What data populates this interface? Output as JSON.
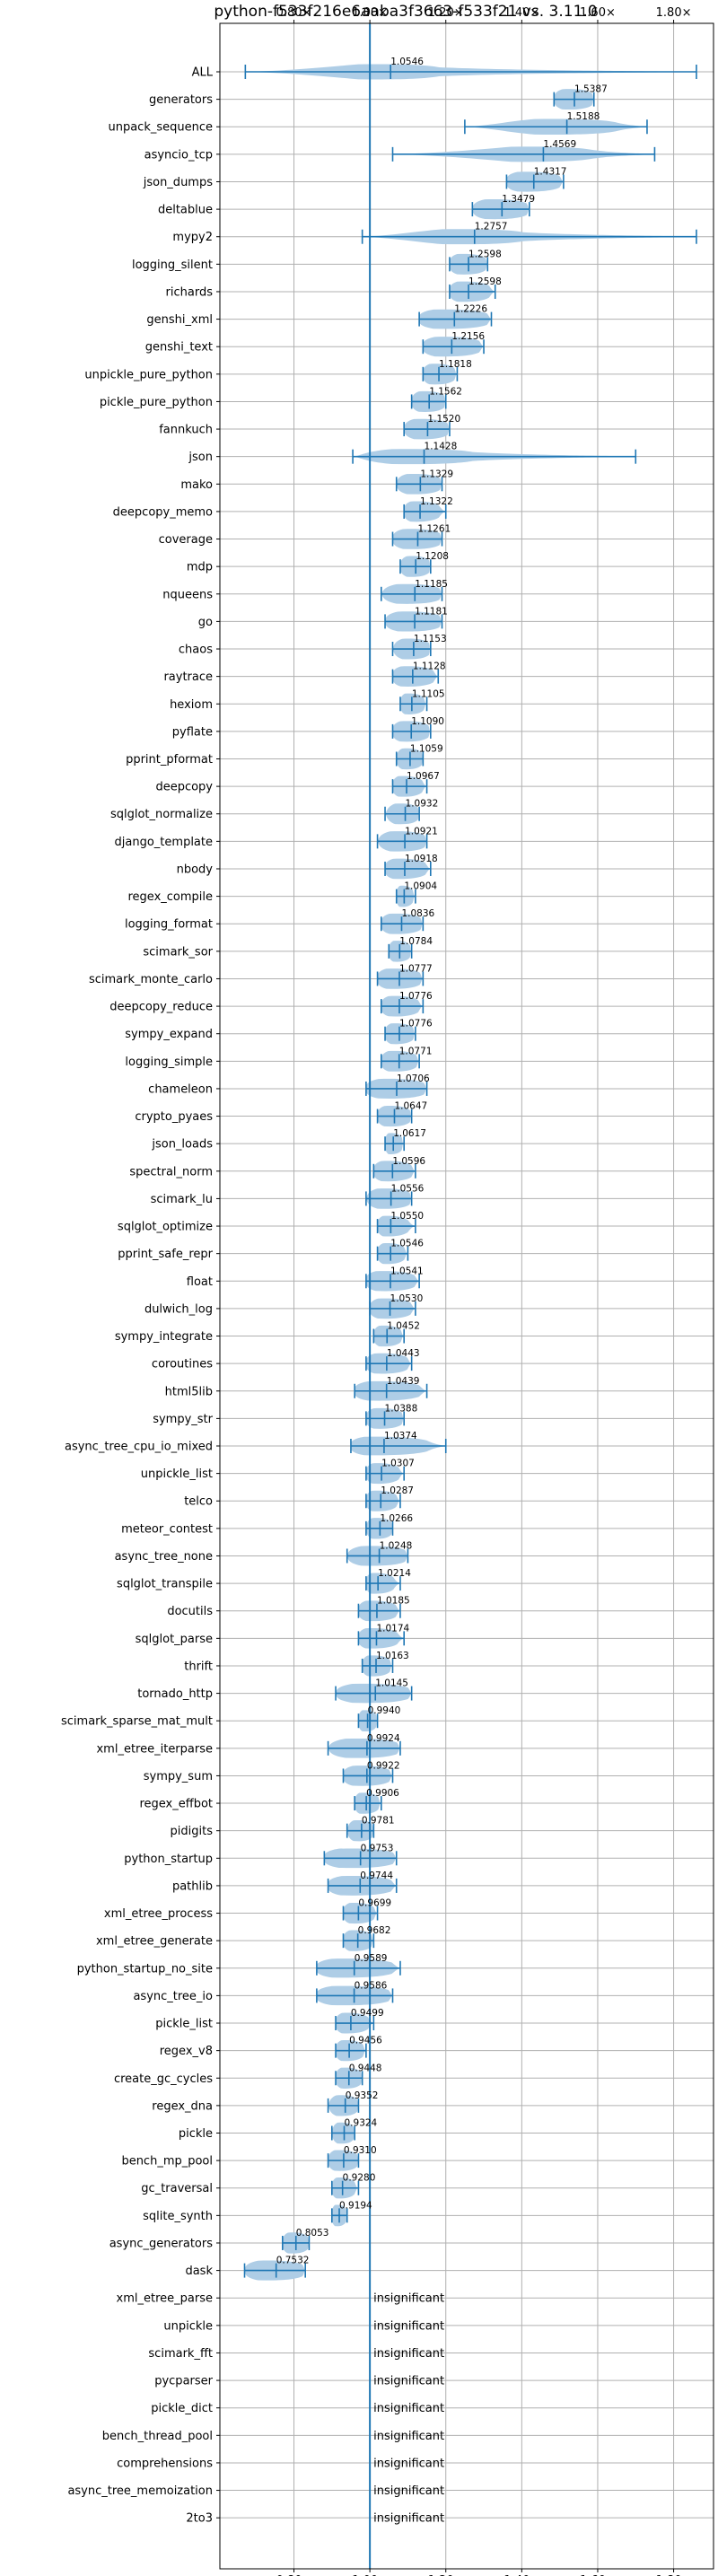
{
  "chart_data": {
    "type": "violin",
    "title": "python-f533f216e6aaba3f3663-f533f21 vs. 3.11.0",
    "xlabel": "",
    "ylabel": "",
    "xlim": [
      0.605,
      1.905
    ],
    "xticks": [
      0.8,
      1.0,
      1.2,
      1.4,
      1.6,
      1.8
    ],
    "xtick_labels": [
      "0.80×",
      "1.00×",
      "1.20×",
      "1.40×",
      "1.60×",
      "1.80×"
    ],
    "reference_line": 1.0,
    "grid": true,
    "colors": {
      "violin": "#aecde6",
      "marker": "#1f77b4",
      "grid": "#b0b0b0"
    },
    "benchmarks": [
      {
        "name": "ALL",
        "label": "1.0546",
        "min": 0.672,
        "max": 1.86,
        "mean": 1.0546
      },
      {
        "name": "generators",
        "label": "1.5387",
        "min": 1.485,
        "max": 1.59,
        "mean": 1.5387
      },
      {
        "name": "unpack_sequence",
        "label": "1.5188",
        "min": 1.25,
        "max": 1.73,
        "mean": 1.5188
      },
      {
        "name": "asyncio_tcp",
        "label": "1.4569",
        "min": 1.06,
        "max": 1.75,
        "mean": 1.4569
      },
      {
        "name": "json_dumps",
        "label": "1.4317",
        "min": 1.36,
        "max": 1.51,
        "mean": 1.4317
      },
      {
        "name": "deltablue",
        "label": "1.3479",
        "min": 1.27,
        "max": 1.42,
        "mean": 1.3479
      },
      {
        "name": "mypy2",
        "label": "1.2757",
        "min": 0.98,
        "max": 1.86,
        "mean": 1.2757
      },
      {
        "name": "logging_silent",
        "label": "1.2598",
        "min": 1.21,
        "max": 1.31,
        "mean": 1.2598
      },
      {
        "name": "richards",
        "label": "1.2598",
        "min": 1.21,
        "max": 1.33,
        "mean": 1.2598
      },
      {
        "name": "genshi_xml",
        "label": "1.2226",
        "min": 1.13,
        "max": 1.32,
        "mean": 1.2226
      },
      {
        "name": "genshi_text",
        "label": "1.2156",
        "min": 1.14,
        "max": 1.3,
        "mean": 1.2156
      },
      {
        "name": "unpickle_pure_python",
        "label": "1.1818",
        "min": 1.14,
        "max": 1.23,
        "mean": 1.1818
      },
      {
        "name": "pickle_pure_python",
        "label": "1.1562",
        "min": 1.11,
        "max": 1.2,
        "mean": 1.1562
      },
      {
        "name": "fannkuch",
        "label": "1.1520",
        "min": 1.09,
        "max": 1.21,
        "mean": 1.152
      },
      {
        "name": "json",
        "label": "1.1428",
        "min": 0.955,
        "max": 1.7,
        "mean": 1.1428
      },
      {
        "name": "mako",
        "label": "1.1329",
        "min": 1.07,
        "max": 1.19,
        "mean": 1.1329
      },
      {
        "name": "deepcopy_memo",
        "label": "1.1322",
        "min": 1.09,
        "max": 1.2,
        "mean": 1.1322
      },
      {
        "name": "coverage",
        "label": "1.1261",
        "min": 1.06,
        "max": 1.19,
        "mean": 1.1261
      },
      {
        "name": "mdp",
        "label": "1.1208",
        "min": 1.08,
        "max": 1.16,
        "mean": 1.1208
      },
      {
        "name": "nqueens",
        "label": "1.1185",
        "min": 1.03,
        "max": 1.19,
        "mean": 1.1185
      },
      {
        "name": "go",
        "label": "1.1181",
        "min": 1.04,
        "max": 1.19,
        "mean": 1.1181
      },
      {
        "name": "chaos",
        "label": "1.1153",
        "min": 1.06,
        "max": 1.16,
        "mean": 1.1153
      },
      {
        "name": "raytrace",
        "label": "1.1128",
        "min": 1.06,
        "max": 1.18,
        "mean": 1.1128
      },
      {
        "name": "hexiom",
        "label": "1.1105",
        "min": 1.08,
        "max": 1.15,
        "mean": 1.1105
      },
      {
        "name": "pyflate",
        "label": "1.1090",
        "min": 1.06,
        "max": 1.16,
        "mean": 1.109
      },
      {
        "name": "pprint_pformat",
        "label": "1.1059",
        "min": 1.07,
        "max": 1.14,
        "mean": 1.1059
      },
      {
        "name": "deepcopy",
        "label": "1.0967",
        "min": 1.06,
        "max": 1.15,
        "mean": 1.0967
      },
      {
        "name": "sqlglot_normalize",
        "label": "1.0932",
        "min": 1.04,
        "max": 1.13,
        "mean": 1.0932
      },
      {
        "name": "django_template",
        "label": "1.0921",
        "min": 1.02,
        "max": 1.15,
        "mean": 1.0921
      },
      {
        "name": "nbody",
        "label": "1.0918",
        "min": 1.04,
        "max": 1.16,
        "mean": 1.0918
      },
      {
        "name": "regex_compile",
        "label": "1.0904",
        "min": 1.07,
        "max": 1.12,
        "mean": 1.0904
      },
      {
        "name": "logging_format",
        "label": "1.0836",
        "min": 1.03,
        "max": 1.14,
        "mean": 1.0836
      },
      {
        "name": "scimark_sor",
        "label": "1.0784",
        "min": 1.05,
        "max": 1.11,
        "mean": 1.0784
      },
      {
        "name": "scimark_monte_carlo",
        "label": "1.0777",
        "min": 1.02,
        "max": 1.14,
        "mean": 1.0777
      },
      {
        "name": "deepcopy_reduce",
        "label": "1.0776",
        "min": 1.03,
        "max": 1.14,
        "mean": 1.0776
      },
      {
        "name": "sympy_expand",
        "label": "1.0776",
        "min": 1.04,
        "max": 1.12,
        "mean": 1.0776
      },
      {
        "name": "logging_simple",
        "label": "1.0771",
        "min": 1.03,
        "max": 1.13,
        "mean": 1.0771
      },
      {
        "name": "chameleon",
        "label": "1.0706",
        "min": 0.99,
        "max": 1.15,
        "mean": 1.0706
      },
      {
        "name": "crypto_pyaes",
        "label": "1.0647",
        "min": 1.02,
        "max": 1.11,
        "mean": 1.0647
      },
      {
        "name": "json_loads",
        "label": "1.0617",
        "min": 1.04,
        "max": 1.09,
        "mean": 1.0617
      },
      {
        "name": "spectral_norm",
        "label": "1.0596",
        "min": 1.01,
        "max": 1.12,
        "mean": 1.0596
      },
      {
        "name": "scimark_lu",
        "label": "1.0556",
        "min": 0.99,
        "max": 1.11,
        "mean": 1.0556
      },
      {
        "name": "sqlglot_optimize",
        "label": "1.0550",
        "min": 1.02,
        "max": 1.12,
        "mean": 1.055
      },
      {
        "name": "pprint_safe_repr",
        "label": "1.0546",
        "min": 1.02,
        "max": 1.1,
        "mean": 1.0546
      },
      {
        "name": "float",
        "label": "1.0541",
        "min": 0.99,
        "max": 1.13,
        "mean": 1.0541
      },
      {
        "name": "dulwich_log",
        "label": "1.0530",
        "min": 1.0,
        "max": 1.12,
        "mean": 1.053
      },
      {
        "name": "sympy_integrate",
        "label": "1.0452",
        "min": 1.01,
        "max": 1.09,
        "mean": 1.0452
      },
      {
        "name": "coroutines",
        "label": "1.0443",
        "min": 0.99,
        "max": 1.11,
        "mean": 1.0443
      },
      {
        "name": "html5lib",
        "label": "1.0439",
        "min": 0.96,
        "max": 1.15,
        "mean": 1.0439
      },
      {
        "name": "sympy_str",
        "label": "1.0388",
        "min": 0.99,
        "max": 1.09,
        "mean": 1.0388
      },
      {
        "name": "async_tree_cpu_io_mixed",
        "label": "1.0374",
        "min": 0.95,
        "max": 1.2,
        "mean": 1.0374
      },
      {
        "name": "unpickle_list",
        "label": "1.0307",
        "min": 0.99,
        "max": 1.09,
        "mean": 1.0307
      },
      {
        "name": "telco",
        "label": "1.0287",
        "min": 0.99,
        "max": 1.08,
        "mean": 1.0287
      },
      {
        "name": "meteor_contest",
        "label": "1.0266",
        "min": 0.99,
        "max": 1.06,
        "mean": 1.0266
      },
      {
        "name": "async_tree_none",
        "label": "1.0248",
        "min": 0.94,
        "max": 1.1,
        "mean": 1.0248
      },
      {
        "name": "sqlglot_transpile",
        "label": "1.0214",
        "min": 0.99,
        "max": 1.08,
        "mean": 1.0214
      },
      {
        "name": "docutils",
        "label": "1.0185",
        "min": 0.97,
        "max": 1.08,
        "mean": 1.0185
      },
      {
        "name": "sqlglot_parse",
        "label": "1.0174",
        "min": 0.97,
        "max": 1.09,
        "mean": 1.0174
      },
      {
        "name": "thrift",
        "label": "1.0163",
        "min": 0.98,
        "max": 1.06,
        "mean": 1.0163
      },
      {
        "name": "tornado_http",
        "label": "1.0145",
        "min": 0.91,
        "max": 1.11,
        "mean": 1.0145
      },
      {
        "name": "scimark_sparse_mat_mult",
        "label": "0.9940",
        "min": 0.97,
        "max": 1.02,
        "mean": 0.994
      },
      {
        "name": "xml_etree_iterparse",
        "label": "0.9924",
        "min": 0.89,
        "max": 1.08,
        "mean": 0.9924
      },
      {
        "name": "sympy_sum",
        "label": "0.9922",
        "min": 0.93,
        "max": 1.06,
        "mean": 0.9922
      },
      {
        "name": "regex_effbot",
        "label": "0.9906",
        "min": 0.96,
        "max": 1.03,
        "mean": 0.9906
      },
      {
        "name": "pidigits",
        "label": "0.9781",
        "min": 0.94,
        "max": 1.01,
        "mean": 0.9781
      },
      {
        "name": "python_startup",
        "label": "0.9753",
        "min": 0.88,
        "max": 1.07,
        "mean": 0.9753
      },
      {
        "name": "pathlib",
        "label": "0.9744",
        "min": 0.89,
        "max": 1.07,
        "mean": 0.9744
      },
      {
        "name": "xml_etree_process",
        "label": "0.9699",
        "min": 0.93,
        "max": 1.02,
        "mean": 0.9699
      },
      {
        "name": "xml_etree_generate",
        "label": "0.9682",
        "min": 0.93,
        "max": 1.01,
        "mean": 0.9682
      },
      {
        "name": "python_startup_no_site",
        "label": "0.9589",
        "min": 0.86,
        "max": 1.08,
        "mean": 0.9589
      },
      {
        "name": "async_tree_io",
        "label": "0.9586",
        "min": 0.86,
        "max": 1.06,
        "mean": 0.9586
      },
      {
        "name": "pickle_list",
        "label": "0.9499",
        "min": 0.91,
        "max": 1.01,
        "mean": 0.9499
      },
      {
        "name": "regex_v8",
        "label": "0.9456",
        "min": 0.91,
        "max": 0.99,
        "mean": 0.9456
      },
      {
        "name": "create_gc_cycles",
        "label": "0.9448",
        "min": 0.91,
        "max": 0.98,
        "mean": 0.9448
      },
      {
        "name": "regex_dna",
        "label": "0.9352",
        "min": 0.89,
        "max": 0.97,
        "mean": 0.9352
      },
      {
        "name": "pickle",
        "label": "0.9324",
        "min": 0.9,
        "max": 0.96,
        "mean": 0.9324
      },
      {
        "name": "bench_mp_pool",
        "label": "0.9310",
        "min": 0.89,
        "max": 0.97,
        "mean": 0.931
      },
      {
        "name": "gc_traversal",
        "label": "0.9280",
        "min": 0.9,
        "max": 0.97,
        "mean": 0.928
      },
      {
        "name": "sqlite_synth",
        "label": "0.9194",
        "min": 0.9,
        "max": 0.94,
        "mean": 0.9194
      },
      {
        "name": "async_generators",
        "label": "0.8053",
        "min": 0.77,
        "max": 0.84,
        "mean": 0.8053
      },
      {
        "name": "dask",
        "label": "0.7532",
        "min": 0.67,
        "max": 0.83,
        "mean": 0.7532
      },
      {
        "name": "xml_etree_parse",
        "label": "insignificant",
        "insignificant": true
      },
      {
        "name": "unpickle",
        "label": "insignificant",
        "insignificant": true
      },
      {
        "name": "scimark_fft",
        "label": "insignificant",
        "insignificant": true
      },
      {
        "name": "pycparser",
        "label": "insignificant",
        "insignificant": true
      },
      {
        "name": "pickle_dict",
        "label": "insignificant",
        "insignificant": true
      },
      {
        "name": "bench_thread_pool",
        "label": "insignificant",
        "insignificant": true
      },
      {
        "name": "comprehensions",
        "label": "insignificant",
        "insignificant": true
      },
      {
        "name": "async_tree_memoization",
        "label": "insignificant",
        "insignificant": true
      },
      {
        "name": "2to3",
        "label": "insignificant",
        "insignificant": true
      }
    ]
  }
}
